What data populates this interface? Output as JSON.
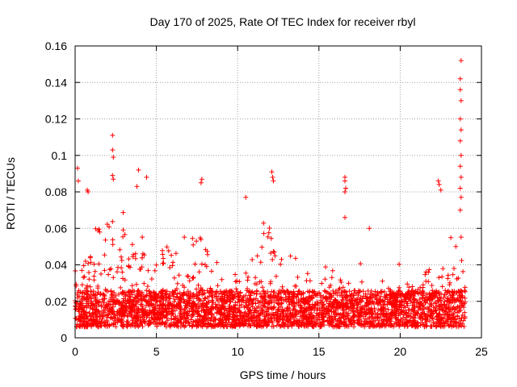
{
  "chart_data": {
    "type": "scatter",
    "title": "Day 170 of 2025, Rate Of TEC Index for receiver rbyl",
    "xlabel": "GPS time / hours",
    "ylabel": "ROTI / TECUs",
    "xlim": [
      0,
      25
    ],
    "ylim": [
      0,
      0.16
    ],
    "x_ticks": [
      {
        "value": 0,
        "label": "0"
      },
      {
        "value": 5,
        "label": "5"
      },
      {
        "value": 10,
        "label": "10"
      },
      {
        "value": 15,
        "label": "15"
      },
      {
        "value": 20,
        "label": "20"
      },
      {
        "value": 25,
        "label": "25"
      }
    ],
    "y_ticks": [
      {
        "value": 0,
        "label": "0"
      },
      {
        "value": 0.02,
        "label": "0.02"
      },
      {
        "value": 0.04,
        "label": "0.04"
      },
      {
        "value": 0.06,
        "label": "0.06"
      },
      {
        "value": 0.08,
        "label": "0.08"
      },
      {
        "value": 0.1,
        "label": "0.1"
      },
      {
        "value": 0.12,
        "label": "0.12"
      },
      {
        "value": 0.14,
        "label": "0.14"
      },
      {
        "value": 0.16,
        "label": "0.16"
      }
    ],
    "grid": true,
    "marker": "+",
    "series_color": "#ff0000",
    "envelope": {
      "description": "Approximate upper envelope of ROTI values per hour (data units)",
      "x": [
        0,
        1,
        2,
        3,
        4,
        5,
        6,
        7,
        8,
        9,
        10,
        11,
        12,
        13,
        14,
        15,
        16,
        17,
        18,
        19,
        20,
        21,
        22,
        23,
        24
      ],
      "y": [
        0.06,
        0.055,
        0.06,
        0.065,
        0.06,
        0.05,
        0.045,
        0.055,
        0.05,
        0.035,
        0.03,
        0.045,
        0.065,
        0.045,
        0.035,
        0.03,
        0.04,
        0.04,
        0.035,
        0.03,
        0.035,
        0.03,
        0.045,
        0.05,
        0.06
      ]
    },
    "notable_points": [
      {
        "x": 0.15,
        "y": 0.093
      },
      {
        "x": 0.2,
        "y": 0.086
      },
      {
        "x": 0.75,
        "y": 0.081
      },
      {
        "x": 0.8,
        "y": 0.08
      },
      {
        "x": 2.3,
        "y": 0.111
      },
      {
        "x": 2.3,
        "y": 0.103
      },
      {
        "x": 2.35,
        "y": 0.099
      },
      {
        "x": 2.3,
        "y": 0.089
      },
      {
        "x": 2.35,
        "y": 0.087
      },
      {
        "x": 3.9,
        "y": 0.092
      },
      {
        "x": 4.4,
        "y": 0.088
      },
      {
        "x": 3.8,
        "y": 0.083
      },
      {
        "x": 7.8,
        "y": 0.087
      },
      {
        "x": 7.75,
        "y": 0.085
      },
      {
        "x": 10.5,
        "y": 0.077
      },
      {
        "x": 12.1,
        "y": 0.091
      },
      {
        "x": 12.15,
        "y": 0.088
      },
      {
        "x": 12.2,
        "y": 0.086
      },
      {
        "x": 16.6,
        "y": 0.088
      },
      {
        "x": 16.6,
        "y": 0.086
      },
      {
        "x": 16.65,
        "y": 0.082
      },
      {
        "x": 16.6,
        "y": 0.08
      },
      {
        "x": 16.6,
        "y": 0.066
      },
      {
        "x": 18.1,
        "y": 0.06
      },
      {
        "x": 22.35,
        "y": 0.086
      },
      {
        "x": 22.4,
        "y": 0.084
      },
      {
        "x": 22.5,
        "y": 0.081
      },
      {
        "x": 23.75,
        "y": 0.152
      },
      {
        "x": 23.7,
        "y": 0.142
      },
      {
        "x": 23.7,
        "y": 0.136
      },
      {
        "x": 23.75,
        "y": 0.13
      },
      {
        "x": 23.7,
        "y": 0.12
      },
      {
        "x": 23.75,
        "y": 0.114
      },
      {
        "x": 23.7,
        "y": 0.108
      },
      {
        "x": 23.75,
        "y": 0.1
      },
      {
        "x": 23.7,
        "y": 0.094
      },
      {
        "x": 23.75,
        "y": 0.088
      },
      {
        "x": 23.7,
        "y": 0.082
      },
      {
        "x": 23.75,
        "y": 0.077
      },
      {
        "x": 23.7,
        "y": 0.07
      }
    ]
  }
}
